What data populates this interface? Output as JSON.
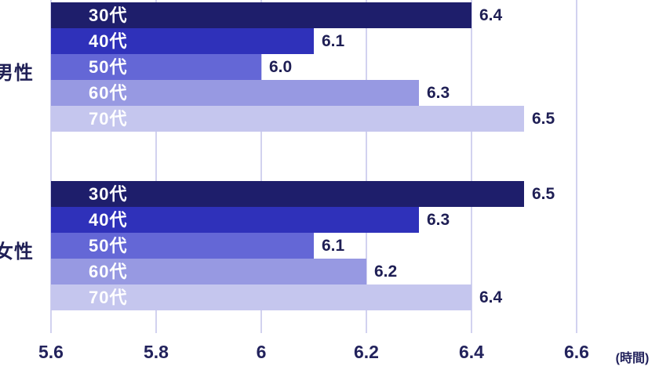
{
  "chart_data": {
    "type": "bar",
    "orientation": "horizontal",
    "title": "",
    "unit_label": "(時間)",
    "categories": [
      "30代",
      "40代",
      "50代",
      "60代",
      "70代"
    ],
    "series": [
      {
        "name": "男性",
        "values": [
          6.4,
          6.1,
          6.0,
          6.3,
          6.5
        ]
      },
      {
        "name": "女性",
        "values": [
          6.5,
          6.3,
          6.1,
          6.2,
          6.4
        ]
      }
    ],
    "value_labels": [
      [
        "6.4",
        "6.1",
        "6.0",
        "6.3",
        "6.5"
      ],
      [
        "6.5",
        "6.3",
        "6.1",
        "6.2",
        "6.4"
      ]
    ],
    "xlim": [
      5.6,
      6.66
    ],
    "x_ticks": [
      5.6,
      5.8,
      6,
      6.2,
      6.4,
      6.6
    ],
    "x_tick_labels": [
      "5.6",
      "5.8",
      "6",
      "6.2",
      "6.4",
      "6.6"
    ],
    "grid": true,
    "legend": "none",
    "bar_colors": [
      "#1e1e6b",
      "#2f31ba",
      "#6467d6",
      "#9799e2",
      "#c5c6ee"
    ]
  },
  "colors": {
    "background": "#ffffff",
    "gridline": "#d2d2ef",
    "value_text": "#1f1f55",
    "axis_text": "#22225c",
    "bar_label_text": "#ffffff"
  }
}
